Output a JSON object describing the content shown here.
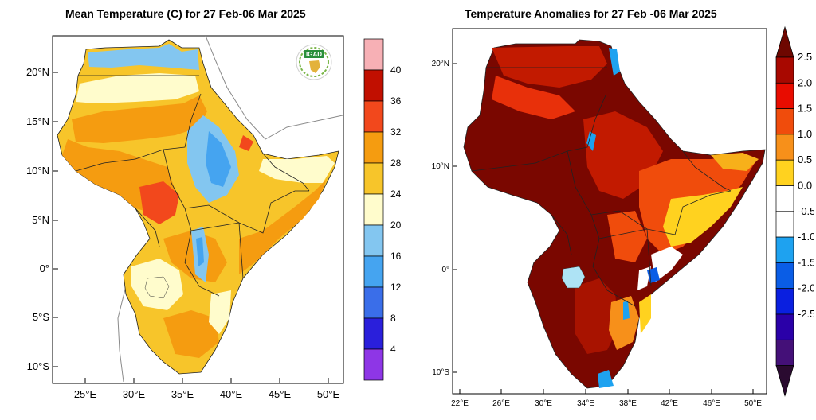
{
  "left_map": {
    "title": "Mean Temperature (C) for 27 Feb-06 Mar 2025",
    "lat_ticks": [
      "20°N",
      "15°N",
      "10°N",
      "5°N",
      "0°",
      "5°S",
      "10°S"
    ],
    "lon_ticks": [
      "25°E",
      "30°E",
      "35°E",
      "40°E",
      "45°E",
      "50°E"
    ],
    "colorbar": {
      "labels": [
        "40",
        "36",
        "32",
        "28",
        "24",
        "20",
        "16",
        "12",
        "8",
        "4"
      ],
      "colors": [
        "#f7b0b5",
        "#c10f00",
        "#f2481c",
        "#f59c10",
        "#f7c52a",
        "#fffccc",
        "#83c6f0",
        "#45a4f0",
        "#3a6ee9",
        "#2a1fdb",
        "#8e36e6"
      ]
    },
    "logo_text": "IGAD"
  },
  "right_map": {
    "title": "Temperature Anomalies for 27 Feb -06 Mar 2025",
    "lat_ticks": [
      "20°N",
      "10°N",
      "0°",
      "10°S"
    ],
    "lon_ticks": [
      "22°E",
      "26°E",
      "30°E",
      "34°E",
      "38°E",
      "42°E",
      "46°E",
      "50°E"
    ],
    "colorbar": {
      "labels": [
        "2.5",
        "2.0",
        "1.5",
        "1.0",
        "0.5",
        "0.0",
        "-0.5",
        "-1.0",
        "-1.5",
        "-2.0",
        "-2.5"
      ],
      "colors": [
        "#6e0700",
        "#a80800",
        "#e80c00",
        "#f04c0c",
        "#f7901a",
        "#ffd21f",
        "#ffffff",
        "#ffffff",
        "#1ea2f0",
        "#0a5de6",
        "#0a1fe0",
        "#2a00a8",
        "#441078",
        "#2a0a30"
      ]
    }
  },
  "palette": {
    "land_outline": "#111111",
    "coast_gray": "#7a7a7a"
  }
}
